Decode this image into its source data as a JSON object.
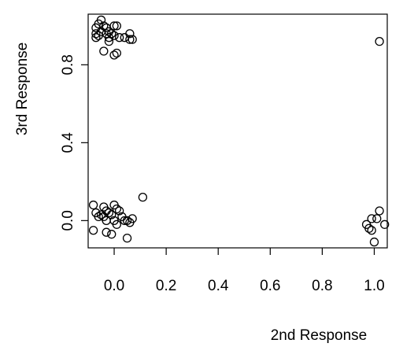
{
  "chart_data": {
    "type": "scatter",
    "xlabel": "2nd Response",
    "ylabel": "3rd Response",
    "xlim": [
      -0.1,
      1.05
    ],
    "ylim": [
      -0.14,
      1.06
    ],
    "xticks": [
      0.0,
      0.2,
      0.4,
      0.6,
      0.8,
      1.0
    ],
    "xtick_labels": [
      "0.0",
      "0.2",
      "0.4",
      "0.6",
      "0.8",
      "1.0"
    ],
    "yticks": [
      0.0,
      0.4,
      0.8
    ],
    "ytick_labels": [
      "0.0",
      "0.4",
      "0.8"
    ],
    "grid": false,
    "legend": "none",
    "points": [
      {
        "x": -0.05,
        "y": 1.03
      },
      {
        "x": -0.06,
        "y": 1.01
      },
      {
        "x": -0.04,
        "y": 1.0
      },
      {
        "x": -0.07,
        "y": 0.99
      },
      {
        "x": -0.03,
        "y": 0.99
      },
      {
        "x": 0.0,
        "y": 1.0
      },
      {
        "x": 0.01,
        "y": 1.0
      },
      {
        "x": -0.05,
        "y": 0.97
      },
      {
        "x": -0.02,
        "y": 0.97
      },
      {
        "x": -0.07,
        "y": 0.96
      },
      {
        "x": -0.06,
        "y": 0.95
      },
      {
        "x": -0.03,
        "y": 0.96
      },
      {
        "x": -0.01,
        "y": 0.96
      },
      {
        "x": 0.0,
        "y": 0.95
      },
      {
        "x": 0.06,
        "y": 0.96
      },
      {
        "x": -0.07,
        "y": 0.94
      },
      {
        "x": -0.02,
        "y": 0.94
      },
      {
        "x": 0.02,
        "y": 0.94
      },
      {
        "x": 0.04,
        "y": 0.94
      },
      {
        "x": 0.06,
        "y": 0.93
      },
      {
        "x": 0.07,
        "y": 0.93
      },
      {
        "x": -0.02,
        "y": 0.92
      },
      {
        "x": -0.04,
        "y": 0.87
      },
      {
        "x": 0.0,
        "y": 0.85
      },
      {
        "x": 0.01,
        "y": 0.86
      },
      {
        "x": 1.02,
        "y": 0.92
      },
      {
        "x": -0.08,
        "y": 0.08
      },
      {
        "x": -0.04,
        "y": 0.07
      },
      {
        "x": 0.0,
        "y": 0.08
      },
      {
        "x": -0.03,
        "y": 0.05
      },
      {
        "x": 0.01,
        "y": 0.06
      },
      {
        "x": -0.07,
        "y": 0.04
      },
      {
        "x": -0.05,
        "y": 0.03
      },
      {
        "x": -0.02,
        "y": 0.04
      },
      {
        "x": 0.02,
        "y": 0.05
      },
      {
        "x": -0.06,
        "y": 0.02
      },
      {
        "x": -0.04,
        "y": 0.02
      },
      {
        "x": -0.01,
        "y": 0.03
      },
      {
        "x": 0.03,
        "y": 0.02
      },
      {
        "x": 0.05,
        "y": 0.0
      },
      {
        "x": 0.07,
        "y": 0.01
      },
      {
        "x": -0.03,
        "y": 0.0
      },
      {
        "x": 0.0,
        "y": 0.0
      },
      {
        "x": 0.04,
        "y": 0.0
      },
      {
        "x": 0.06,
        "y": -0.01
      },
      {
        "x": 0.01,
        "y": -0.02
      },
      {
        "x": -0.08,
        "y": -0.05
      },
      {
        "x": -0.03,
        "y": -0.06
      },
      {
        "x": -0.01,
        "y": -0.07
      },
      {
        "x": 0.05,
        "y": -0.09
      },
      {
        "x": 0.11,
        "y": 0.12
      },
      {
        "x": 1.02,
        "y": 0.05
      },
      {
        "x": 1.01,
        "y": 0.01
      },
      {
        "x": 0.99,
        "y": 0.01
      },
      {
        "x": 0.97,
        "y": -0.02
      },
      {
        "x": 1.04,
        "y": -0.02
      },
      {
        "x": 0.98,
        "y": -0.04
      },
      {
        "x": 0.99,
        "y": -0.05
      },
      {
        "x": 1.0,
        "y": -0.11
      }
    ]
  }
}
